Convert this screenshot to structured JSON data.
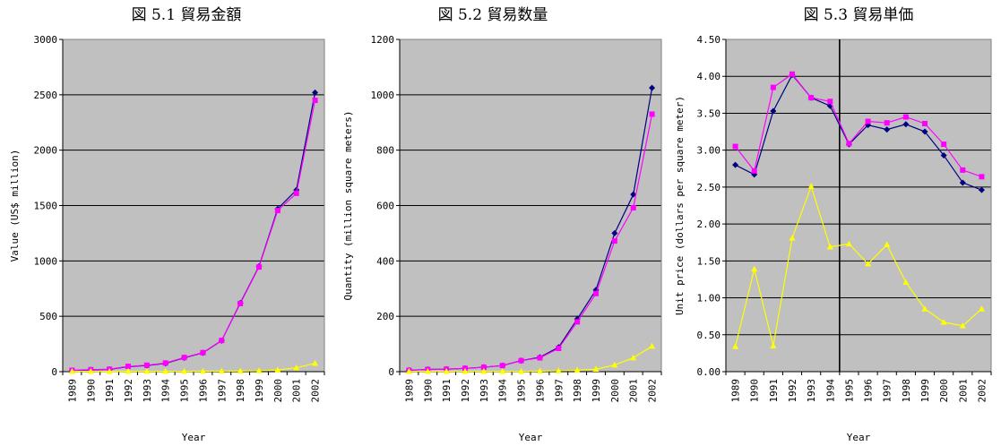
{
  "chart_data": [
    {
      "type": "line",
      "title": "図 5.1  貿易金額",
      "xlabel": "Year",
      "ylabel": "Value (US$ million)",
      "ylim": [
        0,
        3000
      ],
      "yticks": [
        "0",
        "500",
        "1000",
        "1500",
        "2000",
        "2500",
        "3000"
      ],
      "grid": "horizontal",
      "background": "#c0c0c0",
      "categories": [
        "1989",
        "1990",
        "1991",
        "1992",
        "1993",
        "1994",
        "1995",
        "1996",
        "1997",
        "1998",
        "1999",
        "2000",
        "2001",
        "2002"
      ],
      "series": [
        {
          "color": "#000080",
          "marker": "diamond",
          "values": [
            10,
            15,
            20,
            45,
            55,
            75,
            125,
            170,
            280,
            620,
            950,
            1470,
            1640,
            2520
          ]
        },
        {
          "color": "#ff00ff",
          "marker": "square",
          "values": [
            12,
            18,
            22,
            48,
            58,
            78,
            128,
            172,
            282,
            615,
            945,
            1455,
            1610,
            2450
          ]
        },
        {
          "color": "#ffff00",
          "marker": "triangle",
          "values": [
            2,
            3,
            2,
            3,
            3,
            3,
            3,
            4,
            5,
            6,
            8,
            15,
            35,
            75
          ]
        }
      ]
    },
    {
      "type": "line",
      "title": "図 5.2  貿易数量",
      "xlabel": "Year",
      "ylabel": "Quantity (million square meters)",
      "ylim": [
        0,
        1200
      ],
      "yticks": [
        "0",
        "200",
        "400",
        "600",
        "800",
        "1000",
        "1200"
      ],
      "grid": "horizontal",
      "background": "#c0c0c0",
      "categories": [
        "1989",
        "1990",
        "1991",
        "1992",
        "1993",
        "1994",
        "1995",
        "1996",
        "1997",
        "1998",
        "1999",
        "2000",
        "2001",
        "2002"
      ],
      "series": [
        {
          "color": "#000080",
          "marker": "diamond",
          "values": [
            5,
            8,
            9,
            12,
            16,
            22,
            40,
            52,
            88,
            190,
            295,
            500,
            640,
            1025
          ]
        },
        {
          "color": "#ff00ff",
          "marker": "square",
          "values": [
            5,
            8,
            9,
            12,
            16,
            22,
            40,
            50,
            84,
            180,
            282,
            472,
            592,
            930
          ]
        },
        {
          "color": "#ffff00",
          "marker": "triangle",
          "values": [
            1,
            1,
            1,
            1,
            1,
            1,
            1,
            2,
            3,
            5,
            9,
            24,
            50,
            92
          ]
        }
      ]
    },
    {
      "type": "line",
      "title": "図 5.3  貿易単価",
      "xlabel": "Year",
      "ylabel": "Unit price (dollars per square meter)",
      "ylim": [
        0,
        4.5
      ],
      "yticks": [
        "0.00",
        "0.50",
        "1.00",
        "1.50",
        "2.00",
        "2.50",
        "3.00",
        "3.50",
        "4.00",
        "4.50"
      ],
      "grid": "horizontal",
      "background": "#c0c0c0",
      "vertical_marker_year": "1995",
      "categories": [
        "1989",
        "1990",
        "1991",
        "1992",
        "1993",
        "1994",
        "1995",
        "1996",
        "1997",
        "1998",
        "1999",
        "2000",
        "2001",
        "2002"
      ],
      "series": [
        {
          "color": "#000080",
          "marker": "diamond",
          "values": [
            2.8,
            2.67,
            3.53,
            4.02,
            3.71,
            3.6,
            3.08,
            3.34,
            3.28,
            3.35,
            3.25,
            2.93,
            2.56,
            2.46
          ]
        },
        {
          "color": "#ff00ff",
          "marker": "square",
          "values": [
            3.05,
            2.72,
            3.85,
            4.03,
            3.71,
            3.66,
            3.09,
            3.39,
            3.37,
            3.45,
            3.36,
            3.08,
            2.73,
            2.64
          ]
        },
        {
          "color": "#ffff00",
          "marker": "triangle",
          "values": [
            0.34,
            1.39,
            0.35,
            1.81,
            2.51,
            1.69,
            1.73,
            1.46,
            1.72,
            1.21,
            0.85,
            0.67,
            0.62,
            0.85
          ]
        }
      ]
    }
  ]
}
